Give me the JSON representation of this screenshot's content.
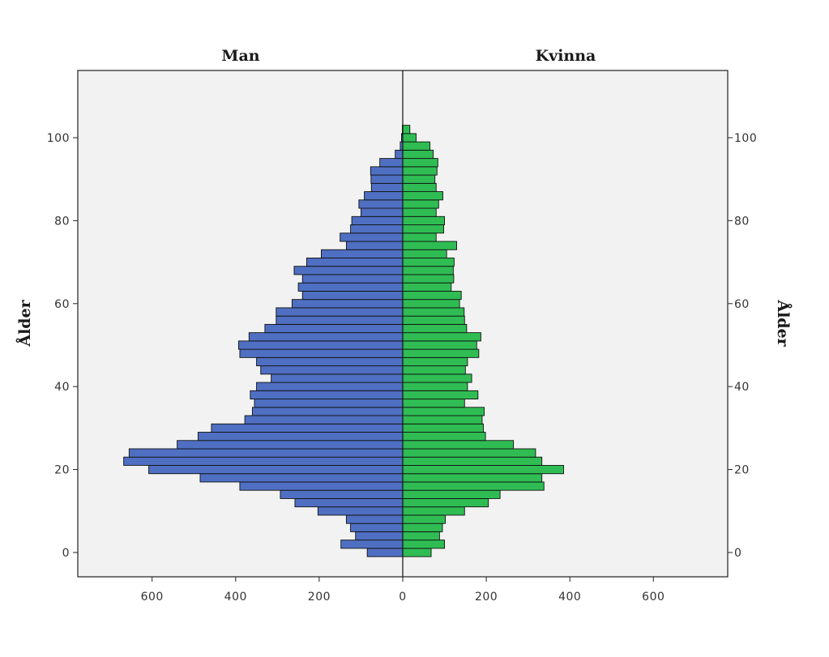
{
  "chart_data": {
    "type": "bar",
    "orientation": "horizontal",
    "xlabel": "",
    "ylabel_left": "Ålder",
    "ylabel_right": "Ålder",
    "x_ticks": [
      600,
      400,
      200,
      0,
      200,
      400,
      600
    ],
    "xlim": [
      -750,
      750
    ],
    "y_ticks": [
      0,
      20,
      40,
      60,
      80,
      100
    ],
    "ylim": [
      -6,
      116
    ],
    "grid": false,
    "legend": "none",
    "bin_width": 2,
    "categories": [
      0,
      2,
      4,
      6,
      8,
      10,
      12,
      14,
      16,
      18,
      20,
      22,
      24,
      26,
      28,
      30,
      32,
      34,
      36,
      38,
      40,
      42,
      44,
      46,
      48,
      50,
      52,
      54,
      56,
      58,
      60,
      62,
      64,
      66,
      68,
      70,
      72,
      74,
      76,
      78,
      80,
      82,
      84,
      86,
      88,
      90,
      92,
      94,
      96,
      98,
      100,
      102
    ],
    "series": [
      {
        "name": "Man",
        "color": "#4f6fc2",
        "values": [
          85,
          148,
          113,
          125,
          135,
          203,
          258,
          293,
          390,
          485,
          608,
          668,
          655,
          540,
          490,
          458,
          378,
          360,
          355,
          365,
          350,
          315,
          340,
          350,
          390,
          393,
          368,
          330,
          303,
          303,
          265,
          240,
          250,
          240,
          260,
          230,
          195,
          135,
          150,
          125,
          122,
          100,
          105,
          92,
          75,
          76,
          77,
          55,
          18,
          6,
          3,
          1
        ]
      },
      {
        "name": "Kvinna",
        "color": "#2fbd53",
        "values": [
          68,
          100,
          88,
          95,
          102,
          148,
          205,
          233,
          338,
          333,
          385,
          333,
          318,
          265,
          198,
          193,
          190,
          195,
          148,
          180,
          155,
          165,
          150,
          155,
          182,
          177,
          187,
          153,
          148,
          147,
          136,
          140,
          116,
          122,
          121,
          123,
          105,
          129,
          80,
          98,
          100,
          80,
          86,
          96,
          80,
          77,
          82,
          84,
          73,
          65,
          32,
          17
        ]
      }
    ]
  },
  "colors": {
    "male": "#4f6fc2",
    "female": "#2fbd53",
    "plot_background": "#f2f2f2",
    "bar_edge": "#111111"
  }
}
